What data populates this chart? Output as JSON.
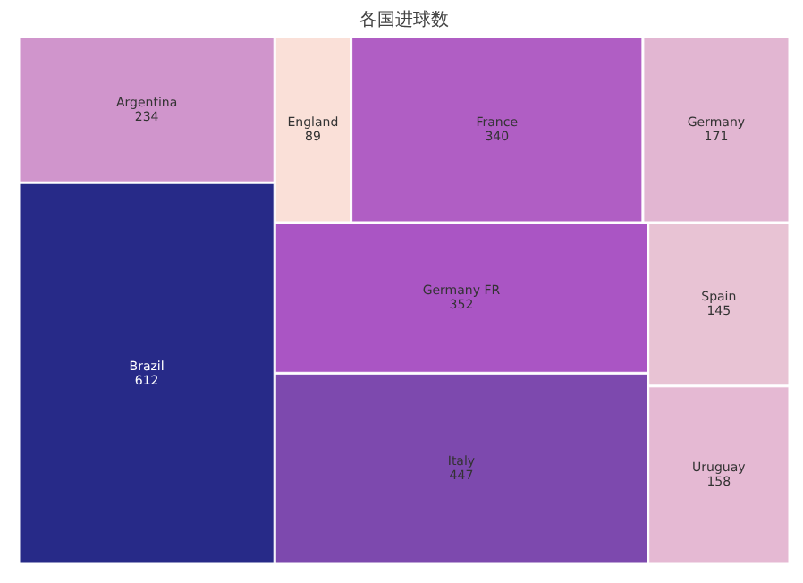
{
  "chart_data": {
    "type": "other",
    "title": "各国进球数",
    "categories": [
      "Argentina",
      "Brazil",
      "England",
      "France",
      "Germany",
      "Germany FR",
      "Italy",
      "Spain",
      "Uruguay"
    ],
    "values": [
      234,
      612,
      89,
      340,
      171,
      352,
      447,
      145,
      158
    ],
    "colors": [
      "#d095cc",
      "#272a88",
      "#fae0d8",
      "#b05ec4",
      "#e2b6d2",
      "#aa55c4",
      "#7d49ae",
      "#e8c3d4",
      "#e5b9d3"
    ],
    "data_labels": true
  }
}
